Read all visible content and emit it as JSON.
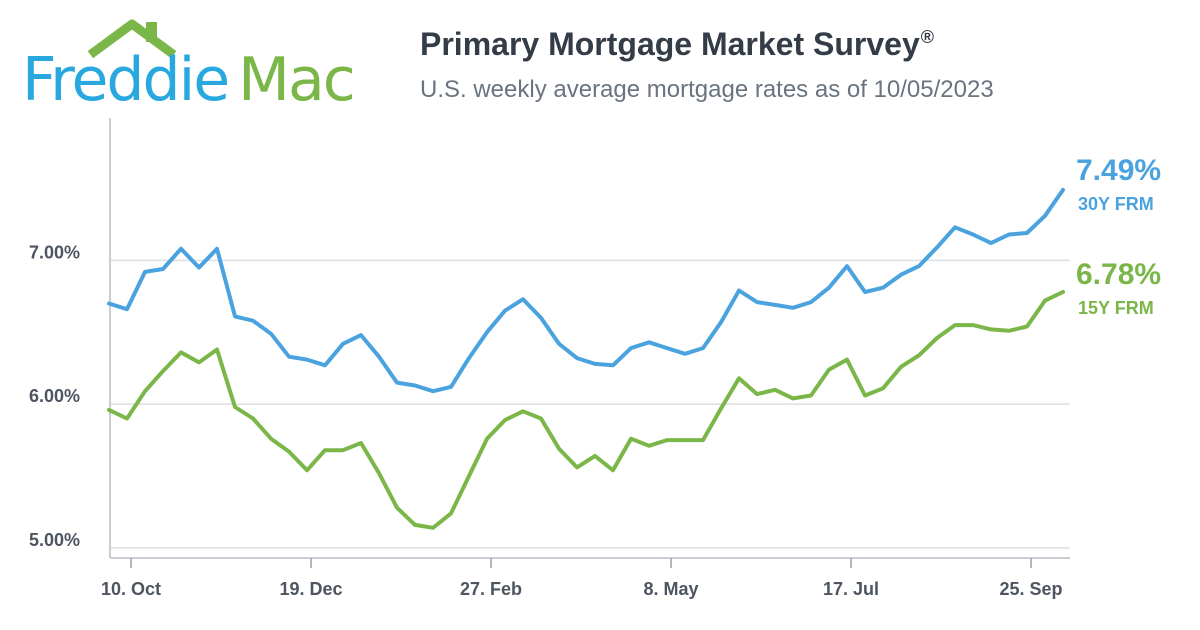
{
  "brand": {
    "logo_part1": "Freddie",
    "logo_part2": "Mac",
    "color_blue": "#29a8e0",
    "color_green": "#7ab648"
  },
  "header": {
    "title": "Primary Mortgage Market Survey",
    "title_mark": "®",
    "subtitle": "U.S. weekly average mortgage rates as of 10/05/2023"
  },
  "chart_data": {
    "type": "line",
    "title": "Primary Mortgage Market Survey®",
    "subtitle": "U.S. weekly average mortgage rates as of 10/05/2023",
    "xlabel": "",
    "ylabel": "",
    "ylim": [
      4.93,
      7.99
    ],
    "y_ticks": [
      5.0,
      6.0,
      7.0
    ],
    "y_tick_labels": [
      "5.00%",
      "6.00%",
      "7.00%"
    ],
    "x_tick_labels": [
      "10. Oct",
      "19. Dec",
      "27. Feb",
      "8. May",
      "17. Jul",
      "25. Sep"
    ],
    "x_tick_indices": [
      1,
      11,
      21,
      31,
      41,
      51
    ],
    "grid": "horizontal",
    "legend": "right (end labels)",
    "series": [
      {
        "name": "30Y FRM",
        "color": "#4aa3df",
        "end_label": "7.49%",
        "values": [
          6.7,
          6.66,
          6.92,
          6.94,
          7.08,
          6.95,
          7.08,
          6.61,
          6.58,
          6.49,
          6.33,
          6.31,
          6.27,
          6.42,
          6.48,
          6.33,
          6.15,
          6.13,
          6.09,
          6.12,
          6.32,
          6.5,
          6.65,
          6.73,
          6.6,
          6.42,
          6.32,
          6.28,
          6.27,
          6.39,
          6.43,
          6.39,
          6.35,
          6.39,
          6.57,
          6.79,
          6.71,
          6.69,
          6.67,
          6.71,
          6.81,
          6.96,
          6.78,
          6.81,
          6.9,
          6.96,
          7.09,
          7.23,
          7.18,
          7.12,
          7.18,
          7.19,
          7.31,
          7.49
        ]
      },
      {
        "name": "15Y FRM",
        "color": "#7ab648",
        "end_label": "6.78%",
        "values": [
          5.96,
          5.9,
          6.09,
          6.23,
          6.36,
          6.29,
          6.38,
          5.98,
          5.9,
          5.76,
          5.67,
          5.54,
          5.68,
          5.68,
          5.73,
          5.52,
          5.28,
          5.16,
          5.14,
          5.24,
          5.5,
          5.76,
          5.89,
          5.95,
          5.9,
          5.69,
          5.56,
          5.64,
          5.54,
          5.76,
          5.71,
          5.75,
          5.75,
          5.75,
          5.97,
          6.18,
          6.07,
          6.1,
          6.04,
          6.06,
          6.24,
          6.31,
          6.06,
          6.11,
          6.26,
          6.34,
          6.46,
          6.55,
          6.55,
          6.52,
          6.51,
          6.54,
          6.72,
          6.78
        ]
      }
    ]
  }
}
